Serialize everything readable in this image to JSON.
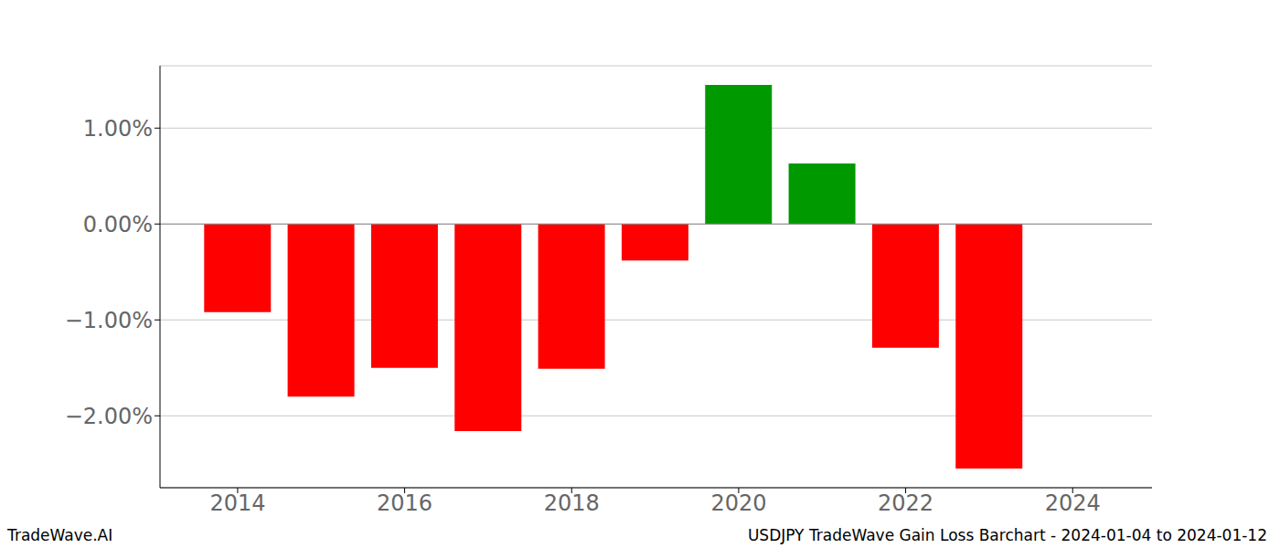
{
  "chart_data": {
    "type": "bar",
    "title": "USDJPY TradeWave Gain Loss Barchart - 2024-01-04 to 2024-01-12",
    "annotations": [
      "TradeWave.AI"
    ],
    "x": [
      2014,
      2015,
      2016,
      2017,
      2018,
      2019,
      2020,
      2021,
      2022,
      2023
    ],
    "values": [
      -0.92,
      -1.8,
      -1.5,
      -2.16,
      -1.51,
      -0.38,
      1.45,
      0.63,
      -1.29,
      -2.55
    ],
    "colors": [
      "#ff0000",
      "#ff0000",
      "#ff0000",
      "#ff0000",
      "#ff0000",
      "#ff0000",
      "#009900",
      "#009900",
      "#ff0000",
      "#ff0000"
    ],
    "xlim": [
      2013.07,
      2024.95
    ],
    "xticks": [
      2014,
      2016,
      2018,
      2020,
      2022,
      2024
    ],
    "ylim": [
      -2.75,
      1.65
    ],
    "yticks": [
      {
        "value": -2,
        "label": "−2.00%"
      },
      {
        "value": -1,
        "label": "−1.00%"
      },
      {
        "value": 0,
        "label": "0.00%"
      },
      {
        "value": 1,
        "label": "1.00%"
      }
    ],
    "grid": true
  }
}
